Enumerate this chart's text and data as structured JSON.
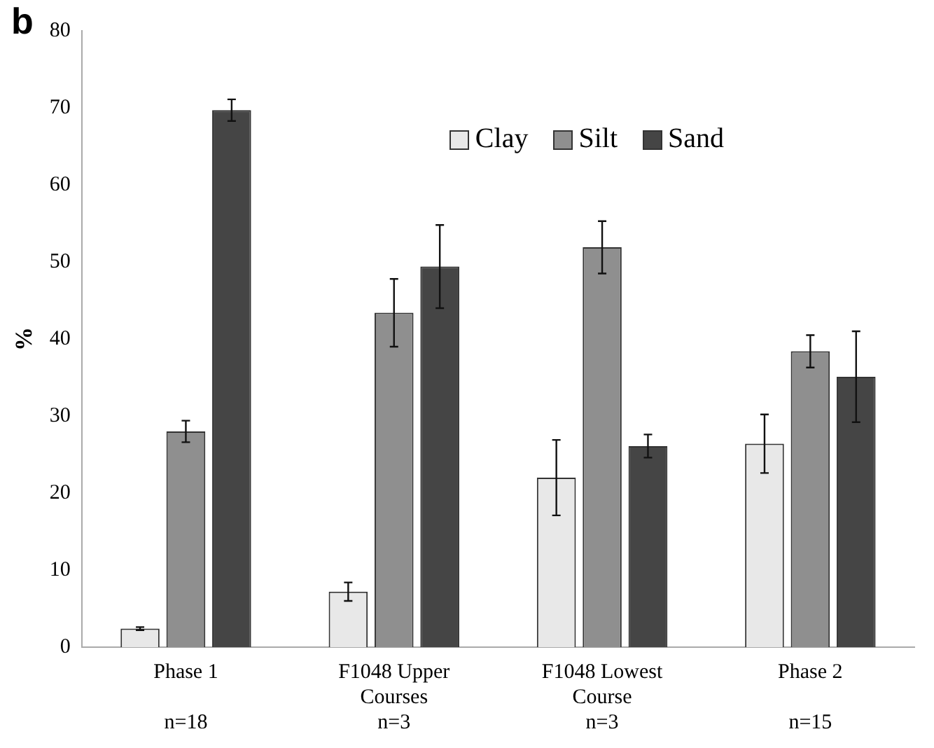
{
  "chart_data": {
    "type": "bar",
    "title": "b",
    "ylabel": "%",
    "categories": [
      "Phase 1\n\nn=18",
      "F1048 Upper\nCourses\nn=3",
      "F1048 Lowest\nCourse\nn=3",
      "Phase 2\n\nn=15"
    ],
    "series": [
      {
        "name": "Clay",
        "color": "#e8e8e8",
        "values": [
          2.4,
          7.2,
          22,
          26.4
        ],
        "errors": [
          0.2,
          1.2,
          4.9,
          3.8
        ]
      },
      {
        "name": "Silt",
        "color": "#8f8f8f",
        "values": [
          28,
          43.4,
          51.9,
          38.4
        ],
        "errors": [
          1.4,
          4.4,
          3.4,
          2.1
        ]
      },
      {
        "name": "Sand",
        "color": "#454545",
        "values": [
          69.7,
          49.4,
          26.1,
          35.1
        ],
        "errors": [
          1.4,
          5.4,
          1.5,
          5.9
        ]
      }
    ],
    "ylim": [
      0,
      80
    ],
    "yticks": [
      0,
      10,
      20,
      30,
      40,
      50,
      60,
      70,
      80
    ],
    "grid": false,
    "legend": "top right"
  }
}
